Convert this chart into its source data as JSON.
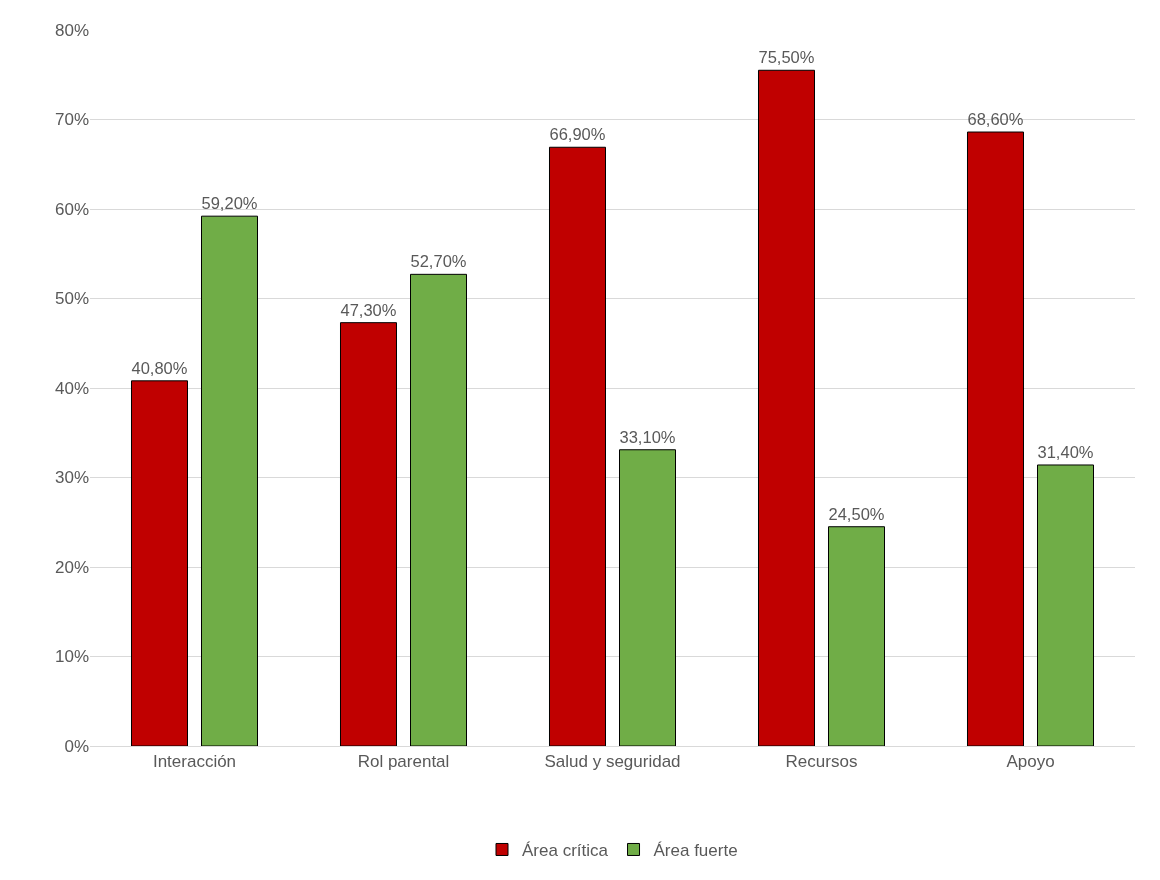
{
  "chart_data": {
    "type": "bar",
    "categories": [
      "Interacción",
      "Rol parental",
      "Salud y seguridad",
      "Recursos",
      "Apoyo"
    ],
    "series": [
      {
        "name": "Área crítica",
        "color": "#c00000",
        "values": [
          40.8,
          47.3,
          66.9,
          75.5,
          68.6
        ],
        "value_labels": [
          "40,80%",
          "47,30%",
          "66,90%",
          "75,50%",
          "68,60%"
        ]
      },
      {
        "name": "Área fuerte",
        "color": "#70ad47",
        "values": [
          59.2,
          52.7,
          33.1,
          24.5,
          31.4
        ],
        "value_labels": [
          "59,20%",
          "52,70%",
          "33,10%",
          "24,50%",
          "31,40%"
        ]
      }
    ],
    "ylim": [
      0,
      80
    ],
    "yticks": [
      {
        "value": 0,
        "label": "0%"
      },
      {
        "value": 10,
        "label": "10%"
      },
      {
        "value": 20,
        "label": "20%"
      },
      {
        "value": 30,
        "label": "30%"
      },
      {
        "value": 40,
        "label": "40%"
      },
      {
        "value": 50,
        "label": "50%"
      },
      {
        "value": 60,
        "label": "60%"
      },
      {
        "value": 70,
        "label": "70%"
      },
      {
        "value": 80,
        "label": "80%"
      }
    ],
    "grid": "y",
    "legend": "bottom"
  }
}
